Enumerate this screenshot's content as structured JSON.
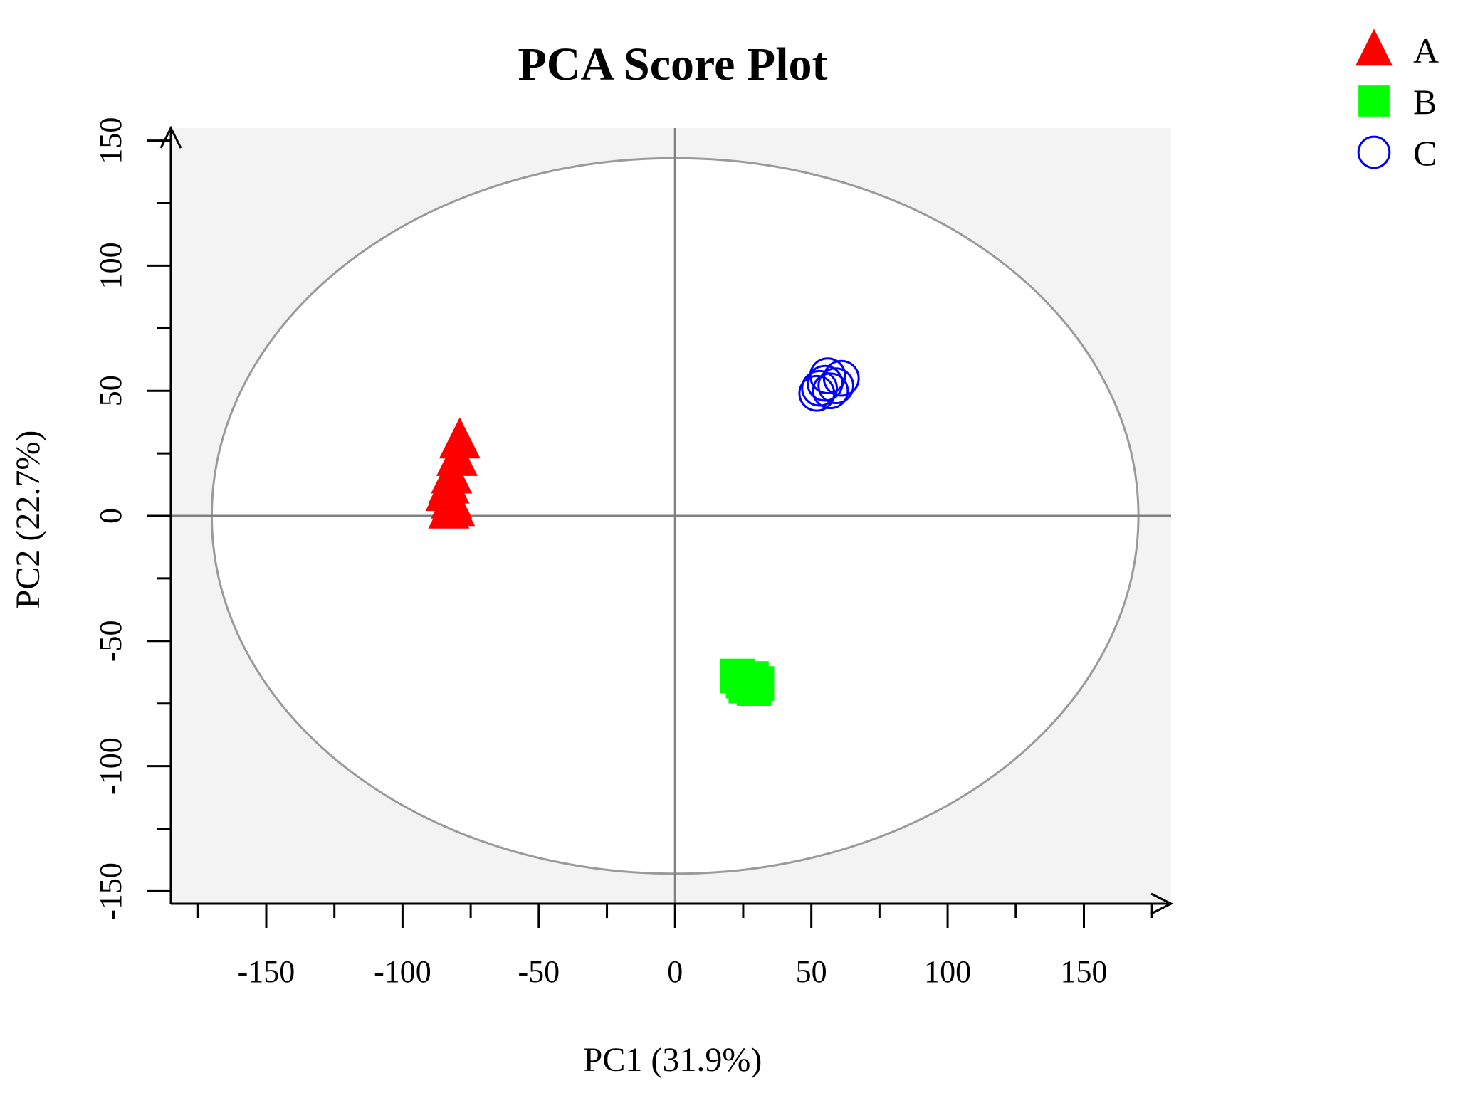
{
  "chart_data": {
    "type": "scatter",
    "title": "PCA Score Plot",
    "xlabel": "PC1 (31.9%)",
    "ylabel": "PC2 (22.7%)",
    "xlim": [
      -185,
      182
    ],
    "ylim": [
      -155,
      155
    ],
    "xticks": [
      -150,
      -100,
      -50,
      0,
      50,
      100,
      150
    ],
    "yticks": [
      -150,
      -100,
      -50,
      0,
      50,
      100,
      150
    ],
    "xtick_labels": [
      "-150",
      "-100",
      "-50",
      "0",
      "50",
      "100",
      "150"
    ],
    "ytick_labels": [
      "-150",
      "-100",
      "-50",
      "0",
      "50",
      "100",
      "150"
    ],
    "confidence_ellipse": {
      "cx": 0,
      "cy": 0,
      "rx": 170,
      "ry": 143
    },
    "legend_position": "top-right",
    "series": [
      {
        "name": "A",
        "marker": "triangle",
        "color": "#ff0000",
        "points": [
          [
            -79,
            30
          ],
          [
            -80,
            23
          ],
          [
            -82,
            16
          ],
          [
            -83,
            12
          ],
          [
            -84,
            9
          ],
          [
            -82,
            6
          ],
          [
            -81,
            3
          ],
          [
            -83,
            2
          ]
        ]
      },
      {
        "name": "B",
        "marker": "square",
        "color": "#00ff00",
        "points": [
          [
            23,
            -64
          ],
          [
            25,
            -66
          ],
          [
            28,
            -65
          ],
          [
            26,
            -68
          ],
          [
            29,
            -69
          ],
          [
            27,
            -67
          ],
          [
            30,
            -67
          ]
        ]
      },
      {
        "name": "C",
        "marker": "circle",
        "color": "#0000ff",
        "points": [
          [
            53,
            51
          ],
          [
            56,
            56
          ],
          [
            61,
            55
          ],
          [
            59,
            52
          ],
          [
            57,
            50
          ],
          [
            52,
            49
          ],
          [
            55,
            53
          ]
        ]
      }
    ]
  }
}
